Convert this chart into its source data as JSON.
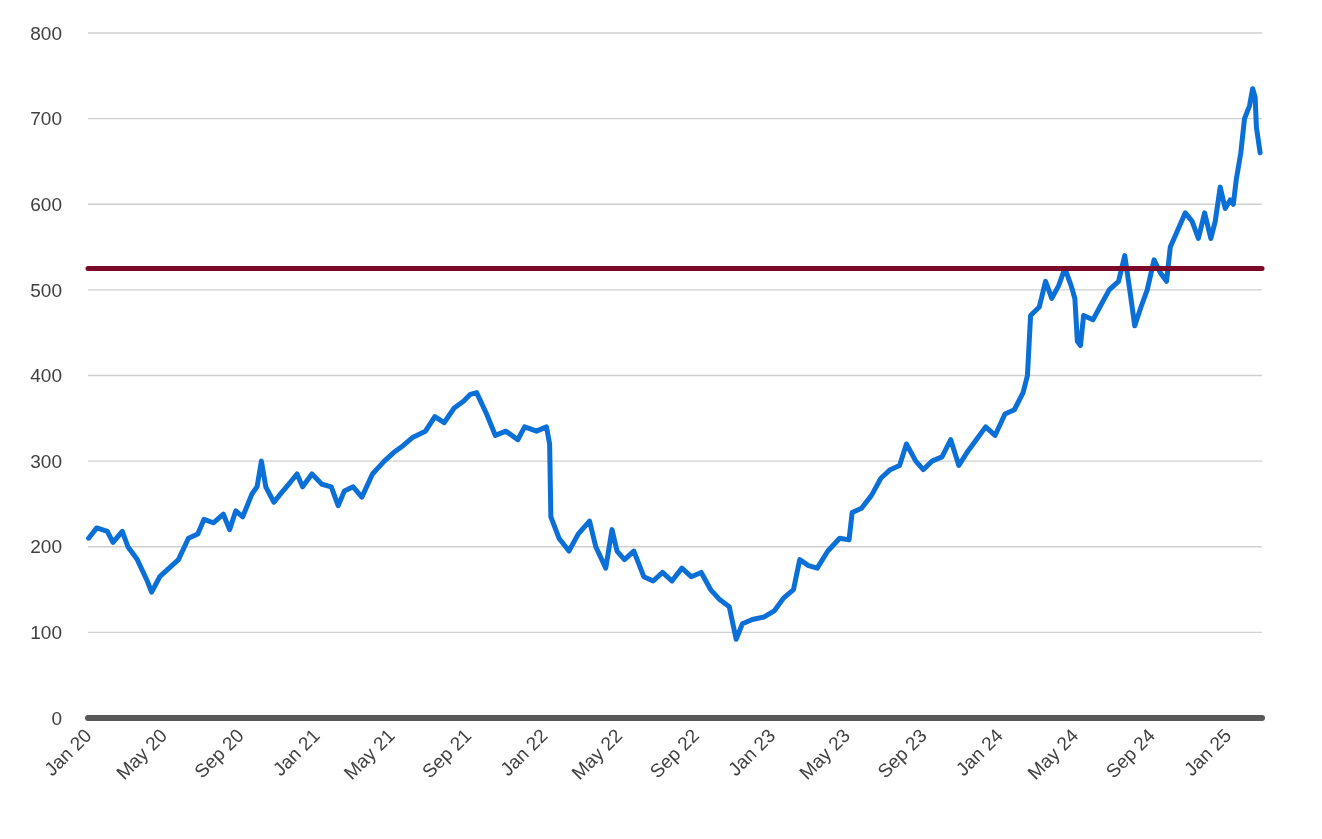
{
  "chart_data": {
    "type": "line",
    "x": [
      "2020-01-02",
      "2020-01-15",
      "2020-02-01",
      "2020-02-10",
      "2020-02-25",
      "2020-03-05",
      "2020-03-20",
      "2020-04-05",
      "2020-04-12",
      "2020-04-25",
      "2020-05-10",
      "2020-05-25",
      "2020-06-10",
      "2020-06-25",
      "2020-07-05",
      "2020-07-20",
      "2020-08-05",
      "2020-08-15",
      "2020-08-25",
      "2020-09-05",
      "2020-09-20",
      "2020-09-28",
      "2020-10-05",
      "2020-10-12",
      "2020-10-25",
      "2020-11-05",
      "2020-11-20",
      "2020-12-01",
      "2020-12-10",
      "2020-12-25",
      "2021-01-10",
      "2021-01-25",
      "2021-02-05",
      "2021-02-15",
      "2021-03-01",
      "2021-03-15",
      "2021-04-01",
      "2021-04-20",
      "2021-05-05",
      "2021-05-20",
      "2021-06-05",
      "2021-06-25",
      "2021-07-10",
      "2021-07-25",
      "2021-08-10",
      "2021-08-25",
      "2021-09-05",
      "2021-09-15",
      "2021-10-01",
      "2021-10-15",
      "2021-11-01",
      "2021-11-20",
      "2021-12-01",
      "2021-12-20",
      "2022-01-05",
      "2022-01-10",
      "2022-01-12",
      "2022-01-25",
      "2022-02-10",
      "2022-02-25",
      "2022-03-15",
      "2022-03-25",
      "2022-04-10",
      "2022-04-20",
      "2022-04-28",
      "2022-05-10",
      "2022-05-25",
      "2022-06-10",
      "2022-06-25",
      "2022-07-10",
      "2022-07-25",
      "2022-08-10",
      "2022-08-25",
      "2022-09-10",
      "2022-09-25",
      "2022-10-10",
      "2022-10-25",
      "2022-11-05",
      "2022-11-15",
      "2022-12-01",
      "2022-12-20",
      "2023-01-05",
      "2023-01-20",
      "2023-02-05",
      "2023-02-15",
      "2023-03-01",
      "2023-03-15",
      "2023-04-01",
      "2023-04-20",
      "2023-05-05",
      "2023-05-10",
      "2023-05-25",
      "2023-06-10",
      "2023-06-25",
      "2023-07-10",
      "2023-07-25",
      "2023-08-05",
      "2023-08-20",
      "2023-09-01",
      "2023-09-15",
      "2023-10-01",
      "2023-10-15",
      "2023-10-28",
      "2023-11-10",
      "2023-11-25",
      "2023-12-10",
      "2023-12-25",
      "2024-01-10",
      "2024-01-25",
      "2024-02-08",
      "2024-02-15",
      "2024-02-20",
      "2024-03-05",
      "2024-03-15",
      "2024-03-25",
      "2024-04-05",
      "2024-04-15",
      "2024-04-25",
      "2024-05-01",
      "2024-05-05",
      "2024-05-10",
      "2024-05-15",
      "2024-05-30",
      "2024-06-10",
      "2024-06-25",
      "2024-07-10",
      "2024-07-20",
      "2024-07-28",
      "2024-08-05",
      "2024-08-15",
      "2024-08-25",
      "2024-09-05",
      "2024-09-15",
      "2024-09-25",
      "2024-10-01",
      "2024-10-10",
      "2024-10-25",
      "2024-11-05",
      "2024-11-15",
      "2024-11-25",
      "2024-12-05",
      "2024-12-12",
      "2024-12-20",
      "2024-12-28",
      "2025-01-05",
      "2025-01-10",
      "2025-01-15",
      "2025-01-22",
      "2025-01-28",
      "2025-02-05",
      "2025-02-10",
      "2025-02-14",
      "2025-02-16",
      "2025-02-22"
    ],
    "series": [
      {
        "color": "#0a6fd6",
        "values": [
          210,
          222,
          218,
          205,
          218,
          200,
          185,
          160,
          147,
          165,
          175,
          185,
          210,
          215,
          232,
          228,
          238,
          220,
          242,
          235,
          262,
          270,
          300,
          270,
          252,
          262,
          275,
          285,
          270,
          285,
          273,
          270,
          248,
          265,
          270,
          258,
          285,
          300,
          310,
          318,
          328,
          335,
          352,
          345,
          362,
          370,
          378,
          380,
          355,
          330,
          335,
          325,
          340,
          335,
          340,
          320,
          235,
          210,
          195,
          215,
          230,
          200,
          175,
          220,
          195,
          185,
          195,
          165,
          160,
          170,
          160,
          175,
          165,
          170,
          150,
          138,
          130,
          92,
          110,
          115,
          118,
          125,
          140,
          150,
          185,
          178,
          175,
          195,
          210,
          208,
          240,
          245,
          260,
          280,
          290,
          295,
          320,
          300,
          290,
          300,
          305,
          325,
          295,
          310,
          325,
          340,
          330,
          355,
          360,
          380,
          400,
          470,
          480,
          510,
          490,
          505,
          525,
          505,
          490,
          440,
          435,
          470,
          465,
          480,
          500,
          510,
          540,
          500,
          458,
          480,
          500,
          535,
          520,
          510,
          550,
          565,
          590,
          580,
          560,
          590,
          560,
          580,
          620,
          595,
          605,
          600,
          630,
          660,
          700,
          715,
          735,
          725,
          690,
          660
        ]
      }
    ],
    "xlim": [
      "2020-01-01",
      "2025-02-25"
    ],
    "xticks": [
      {
        "value": "2020-01",
        "label": "Jan 20"
      },
      {
        "value": "2020-05",
        "label": "May 20"
      },
      {
        "value": "2020-09",
        "label": "Sep 20"
      },
      {
        "value": "2021-01",
        "label": "Jan 21"
      },
      {
        "value": "2021-05",
        "label": "May 21"
      },
      {
        "value": "2021-09",
        "label": "Sep 21"
      },
      {
        "value": "2022-01",
        "label": "Jan 22"
      },
      {
        "value": "2022-05",
        "label": "May 22"
      },
      {
        "value": "2022-09",
        "label": "Sep 22"
      },
      {
        "value": "2023-01",
        "label": "Jan 23"
      },
      {
        "value": "2023-05",
        "label": "May 23"
      },
      {
        "value": "2023-09",
        "label": "Sep 23"
      },
      {
        "value": "2024-01",
        "label": "Jan 24"
      },
      {
        "value": "2024-05",
        "label": "May 24"
      },
      {
        "value": "2024-09",
        "label": "Sep 24"
      },
      {
        "value": "2025-01",
        "label": "Jan 25"
      }
    ],
    "ylim": [
      0,
      800
    ],
    "yticks": [
      0,
      100,
      200,
      300,
      400,
      500,
      600,
      700,
      800
    ],
    "grid": "y",
    "ref_lines": [
      {
        "axis": "y",
        "value": 525,
        "color": "#7b0a2a"
      }
    ]
  }
}
